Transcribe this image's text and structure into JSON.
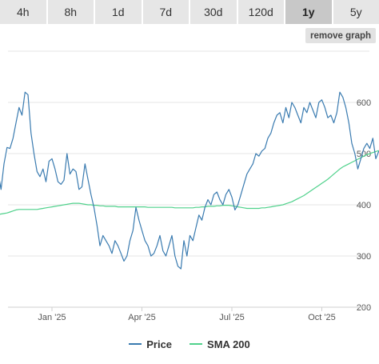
{
  "tabs": [
    {
      "label": "4h",
      "active": false
    },
    {
      "label": "8h",
      "active": false
    },
    {
      "label": "1d",
      "active": false
    },
    {
      "label": "7d",
      "active": false
    },
    {
      "label": "30d",
      "active": false
    },
    {
      "label": "120d",
      "active": false
    },
    {
      "label": "1y",
      "active": true
    },
    {
      "label": "5y",
      "active": false
    }
  ],
  "remove_graph_label": "remove graph",
  "legend": {
    "price_label": "Price",
    "sma_label": "SMA 200"
  },
  "colors": {
    "price": "#3a7bb0",
    "sma": "#4fd18b",
    "grid": "#e6e6e6"
  },
  "chart_data": {
    "type": "line",
    "x_tick_labels": [
      "Jan '25",
      "Apr '25",
      "Jul '25",
      "Oct '25"
    ],
    "y_tick_labels": [
      "200",
      "300",
      "400",
      "500",
      "600"
    ],
    "ylim": [
      200,
      640
    ],
    "grid": true,
    "legend_position": "bottom",
    "x_months": [
      -1.9,
      -1.8,
      -1.7,
      -1.6,
      -1.5,
      -1.4,
      -1.3,
      -1.2,
      -1.1,
      -1.0,
      -0.9,
      -0.8,
      -0.7,
      -0.6,
      -0.5,
      -0.4,
      -0.3,
      -0.2,
      -0.1,
      0.0,
      0.1,
      0.2,
      0.3,
      0.4,
      0.5,
      0.6,
      0.7,
      0.8,
      0.9,
      1.0,
      1.1,
      1.2,
      1.3,
      1.4,
      1.5,
      1.6,
      1.7,
      1.8,
      1.9,
      2.0,
      2.1,
      2.2,
      2.3,
      2.4,
      2.5,
      2.6,
      2.7,
      2.8,
      2.9,
      3.0,
      3.1,
      3.2,
      3.3,
      3.4,
      3.5,
      3.6,
      3.7,
      3.8,
      3.9,
      4.0,
      4.1,
      4.2,
      4.3,
      4.4,
      4.5,
      4.6,
      4.7,
      4.8,
      4.9,
      5.0,
      5.1,
      5.2,
      5.3,
      5.4,
      5.5,
      5.6,
      5.7,
      5.8,
      5.9,
      6.0,
      6.1,
      6.2,
      6.3,
      6.4,
      6.5,
      6.6,
      6.7,
      6.8,
      6.9,
      7.0,
      7.1,
      7.2,
      7.3,
      7.4,
      7.5,
      7.6,
      7.7,
      7.8,
      7.9,
      8.0,
      8.1,
      8.2,
      8.3,
      8.4,
      8.5,
      8.6,
      8.7,
      8.8,
      8.9,
      9.0,
      9.1,
      9.2,
      9.3,
      9.4,
      9.5,
      9.6,
      9.7,
      9.8,
      9.9,
      10.0,
      10.1,
      10.2,
      10.3,
      10.4,
      10.5,
      10.6,
      10.7,
      10.8,
      10.9
    ],
    "series": [
      {
        "name": "Price",
        "values": [
          442,
          465,
          430,
          480,
          512,
          510,
          530,
          560,
          590,
          575,
          620,
          615,
          540,
          500,
          465,
          455,
          470,
          445,
          485,
          490,
          470,
          445,
          440,
          448,
          500,
          460,
          470,
          465,
          430,
          435,
          480,
          450,
          420,
          395,
          360,
          320,
          340,
          330,
          320,
          305,
          330,
          320,
          305,
          290,
          300,
          330,
          350,
          395,
          370,
          350,
          330,
          320,
          300,
          305,
          320,
          340,
          310,
          300,
          320,
          340,
          300,
          280,
          275,
          330,
          300,
          340,
          330,
          355,
          380,
          370,
          395,
          410,
          400,
          420,
          425,
          410,
          400,
          420,
          430,
          415,
          390,
          400,
          420,
          440,
          460,
          470,
          480,
          500,
          495,
          505,
          510,
          530,
          540,
          560,
          575,
          580,
          560,
          590,
          570,
          600,
          590,
          575,
          560,
          590,
          580,
          600,
          585,
          570,
          600,
          605,
          590,
          570,
          575,
          560,
          580,
          620,
          610,
          590,
          560,
          520,
          500,
          470,
          490,
          510,
          520,
          510,
          530,
          490,
          505
        ]
      },
      {
        "name": "SMA 200",
        "values": [
          380,
          381,
          382,
          383,
          384,
          386,
          388,
          390,
          391,
          391,
          391,
          391,
          391,
          391,
          391,
          392,
          393,
          394,
          395,
          396,
          397,
          398,
          399,
          400,
          401,
          402,
          403,
          403,
          403,
          402,
          401,
          400,
          400,
          399,
          399,
          398,
          398,
          397,
          397,
          397,
          397,
          396,
          396,
          396,
          396,
          396,
          396,
          396,
          396,
          396,
          396,
          395,
          395,
          395,
          395,
          395,
          395,
          395,
          395,
          395,
          394,
          394,
          394,
          394,
          394,
          394,
          394,
          395,
          395,
          396,
          396,
          397,
          397,
          397,
          398,
          398,
          399,
          399,
          399,
          398,
          397,
          396,
          395,
          394,
          393,
          393,
          393,
          393,
          393,
          394,
          394,
          395,
          396,
          397,
          398,
          399,
          400,
          402,
          404,
          406,
          409,
          412,
          415,
          418,
          422,
          426,
          430,
          434,
          438,
          442,
          446,
          450,
          455,
          460,
          465,
          470,
          474,
          477,
          480,
          483,
          486,
          489,
          492,
          495,
          498,
          500,
          502,
          504,
          506
        ]
      }
    ]
  }
}
